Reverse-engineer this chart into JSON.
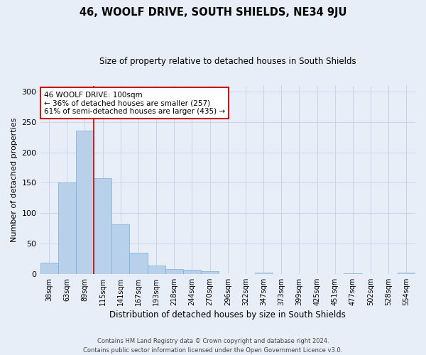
{
  "title": "46, WOOLF DRIVE, SOUTH SHIELDS, NE34 9JU",
  "subtitle": "Size of property relative to detached houses in South Shields",
  "xlabel": "Distribution of detached houses by size in South Shields",
  "ylabel": "Number of detached properties",
  "footer_line1": "Contains HM Land Registry data © Crown copyright and database right 2024.",
  "footer_line2": "Contains public sector information licensed under the Open Government Licence v3.0.",
  "bins": [
    "38sqm",
    "63sqm",
    "89sqm",
    "115sqm",
    "141sqm",
    "167sqm",
    "193sqm",
    "218sqm",
    "244sqm",
    "270sqm",
    "296sqm",
    "322sqm",
    "347sqm",
    "373sqm",
    "399sqm",
    "425sqm",
    "451sqm",
    "477sqm",
    "502sqm",
    "528sqm",
    "554sqm"
  ],
  "values": [
    19,
    151,
    236,
    158,
    82,
    35,
    14,
    8,
    7,
    4,
    0,
    0,
    2,
    0,
    0,
    0,
    0,
    1,
    0,
    0,
    2
  ],
  "bar_color": "#b8d0ea",
  "bar_edge_color": "#7aafd4",
  "grid_color": "#c8d4e8",
  "background_color": "#e8eef8",
  "vline_color": "#cc0000",
  "vline_x_index": 2,
  "annotation_text": "46 WOOLF DRIVE: 100sqm\n← 36% of detached houses are smaller (257)\n61% of semi-detached houses are larger (435) →",
  "annotation_box_color": "#ffffff",
  "annotation_box_edge_color": "#cc0000",
  "ylim": [
    0,
    310
  ],
  "yticks": [
    0,
    50,
    100,
    150,
    200,
    250,
    300
  ]
}
